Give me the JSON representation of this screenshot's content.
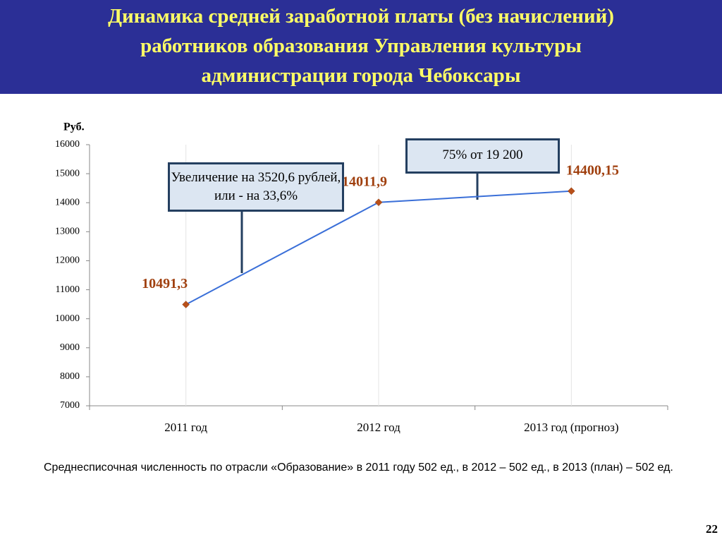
{
  "header": {
    "title": [
      "Динамика средней заработной платы (без начислений)",
      "работников образования Управления культуры",
      "администрации города Чебоксары"
    ]
  },
  "chart_data": {
    "type": "line",
    "y_label": "Руб.",
    "categories": [
      "2011 год",
      "2012 год",
      "2013 год (прогноз)"
    ],
    "values": [
      10491.3,
      14011.9,
      14400.15
    ],
    "value_labels": [
      "10491,3",
      "14011,9",
      "14400,15"
    ],
    "color": "#3a6fd8",
    "marker_color": "#b8501a",
    "ylim": [
      7000,
      16000
    ],
    "yticks": [
      7000,
      8000,
      9000,
      10000,
      11000,
      12000,
      13000,
      14000,
      15000,
      16000
    ],
    "grid": true,
    "annotations": [
      "Увеличение на 3520,6 рублей, или - на 33,6%",
      "75% от 19 200"
    ]
  },
  "footnote": "Среднесписочная численность по отрасли «Образование» в 2011 году 502 ед., в 2012 – 502 ед., в 2013 (план) – 502 ед.",
  "page_number": "22"
}
